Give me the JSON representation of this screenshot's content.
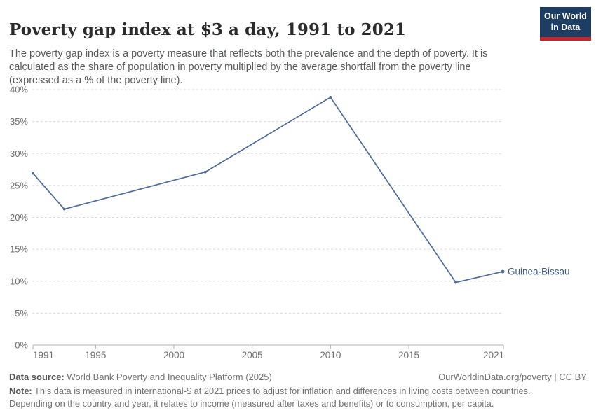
{
  "header": {
    "title": "Poverty gap index at $3 a day, 1991 to 2021",
    "subtitle": "The poverty gap index is a poverty measure that reflects both the prevalence and the depth of poverty. It is calculated as the share of population in poverty multiplied by the average shortfall from the poverty line (expressed as a % of the poverty line).",
    "logo": {
      "line1": "Our World",
      "line2": "in Data",
      "bg": "#1d3d63",
      "accent": "#c1272d"
    }
  },
  "chart_data": {
    "type": "line",
    "title": "Poverty gap index at $3 a day, 1991 to 2021",
    "xlabel": "",
    "ylabel": "",
    "x": [
      1991,
      1993,
      2002,
      2010,
      2018,
      2021
    ],
    "series": [
      {
        "name": "Guinea-Bissau",
        "color": "#4c6a9c",
        "values": [
          26.9,
          21.3,
          27.1,
          38.8,
          9.8,
          11.5
        ]
      }
    ],
    "end_label": "Guinea-Bissau",
    "end_label_color": "#3d5c8e",
    "xlim": [
      1991,
      2021
    ],
    "ylim": [
      0,
      40
    ],
    "xticks": [
      1991,
      1995,
      2000,
      2005,
      2010,
      2015,
      2021
    ],
    "yticks": [
      0,
      5,
      10,
      15,
      20,
      25,
      30,
      35,
      40
    ],
    "ytick_suffix": "%",
    "grid": "horizontal-dashed",
    "legend_position": "end-of-line",
    "colors": {
      "grid": "#dcdcdc",
      "axis": "#b0b0b0",
      "tick_label": "#6e6e6e"
    }
  },
  "footer": {
    "datasource_label": "Data source:",
    "datasource_text": " World Bank Poverty and Inequality Platform (2025)",
    "rights": "OurWorldinData.org/poverty | CC BY",
    "note_label": "Note:",
    "note_text": " This data is measured in international-$ at 2021 prices to adjust for inflation and differences in living costs between countries. Depending on the country and year, it relates to income (measured after taxes and benefits) or to consumption, per capita."
  }
}
